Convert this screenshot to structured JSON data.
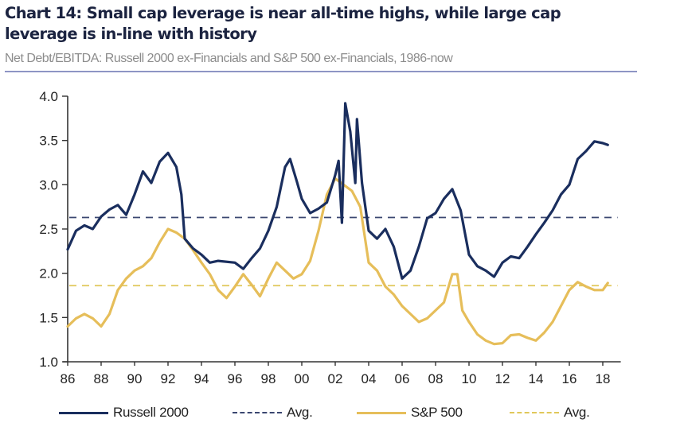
{
  "header": {
    "title": "Chart 14: Small cap leverage is near all-time highs, while large cap leverage is in-line with history",
    "subtitle": "Net Debt/EBITDA: Russell 2000 ex-Financials and S&P 500 ex-Financials, 1986-now"
  },
  "colors": {
    "russell": "#1a2e5e",
    "russell_avg": "#3a4670",
    "sp500": "#e6be5a",
    "sp500_avg": "#e0c85a",
    "axis": "#333333",
    "rule": "#8e95c4"
  },
  "chart_data": {
    "type": "line",
    "title": "Chart 14: Small cap leverage is near all-time highs, while large cap leverage is in-line with history",
    "subtitle": "Net Debt/EBITDA: Russell 2000 ex-Financials and S&P 500 ex-Financials, 1986-now",
    "xlabel": "",
    "ylabel": "",
    "xlim": [
      1986,
      2018.6
    ],
    "ylim": [
      1.0,
      4.0
    ],
    "x_ticks": [
      1986,
      1988,
      1990,
      1992,
      1994,
      1996,
      1998,
      2000,
      2002,
      2004,
      2006,
      2008,
      2010,
      2012,
      2014,
      2016,
      2018
    ],
    "x_tick_labels": [
      "86",
      "88",
      "90",
      "92",
      "94",
      "96",
      "98",
      "00",
      "02",
      "04",
      "06",
      "08",
      "10",
      "12",
      "14",
      "16",
      "18"
    ],
    "y_ticks": [
      1.0,
      1.5,
      2.0,
      2.5,
      3.0,
      3.5,
      4.0
    ],
    "y_tick_labels": [
      "1.0",
      "1.5",
      "2.0",
      "2.5",
      "3.0",
      "3.5",
      "4.0"
    ],
    "grid": false,
    "legend_position": "bottom",
    "series": [
      {
        "name": "Russell 2000",
        "style": "solid",
        "x": [
          1986.0,
          1986.5,
          1987.0,
          1987.5,
          1988.0,
          1988.5,
          1989.0,
          1989.5,
          1990.0,
          1990.5,
          1991.0,
          1991.5,
          1992.0,
          1992.5,
          1992.8,
          1993.0,
          1993.5,
          1994.0,
          1994.5,
          1995.0,
          1996.0,
          1996.5,
          1997.0,
          1997.5,
          1998.0,
          1998.5,
          1999.0,
          1999.3,
          1999.7,
          2000.0,
          2000.5,
          2001.0,
          2001.5,
          2002.0,
          2002.2,
          2002.4,
          2002.6,
          2002.9,
          2003.2,
          2003.3,
          2003.6,
          2004.0,
          2004.5,
          2005.0,
          2005.5,
          2006.0,
          2006.5,
          2007.0,
          2007.5,
          2008.0,
          2008.5,
          2009.0,
          2009.5,
          2010.0,
          2010.5,
          2011.0,
          2011.5,
          2012.0,
          2012.5,
          2013.0,
          2013.5,
          2014.0,
          2014.5,
          2015.0,
          2015.5,
          2016.0,
          2016.5,
          2017.0,
          2017.5,
          2018.0,
          2018.3
        ],
        "values": [
          2.27,
          2.48,
          2.54,
          2.5,
          2.64,
          2.72,
          2.77,
          2.66,
          2.89,
          3.15,
          3.02,
          3.26,
          3.36,
          3.2,
          2.89,
          2.39,
          2.28,
          2.21,
          2.12,
          2.14,
          2.12,
          2.05,
          2.17,
          2.28,
          2.48,
          2.75,
          3.2,
          3.29,
          3.04,
          2.84,
          2.68,
          2.73,
          2.8,
          3.11,
          3.27,
          2.57,
          3.92,
          3.6,
          3.02,
          3.74,
          3.02,
          2.48,
          2.39,
          2.5,
          2.3,
          1.94,
          2.03,
          2.3,
          2.62,
          2.68,
          2.84,
          2.95,
          2.71,
          2.21,
          2.08,
          2.03,
          1.96,
          2.12,
          2.19,
          2.17,
          2.3,
          2.44,
          2.57,
          2.71,
          2.89,
          3.0,
          3.29,
          3.38,
          3.49,
          3.47,
          3.45
        ]
      },
      {
        "name": "Avg.",
        "of": "Russell 2000",
        "style": "dashed",
        "value": 2.63
      },
      {
        "name": "S&P 500",
        "style": "solid",
        "x": [
          1986.0,
          1986.5,
          1987.0,
          1987.5,
          1988.0,
          1988.5,
          1989.0,
          1989.5,
          1990.0,
          1990.5,
          1991.0,
          1991.5,
          1992.0,
          1992.5,
          1993.0,
          1993.5,
          1994.0,
          1994.5,
          1995.0,
          1995.5,
          1996.0,
          1996.5,
          1997.0,
          1997.5,
          1998.0,
          1998.5,
          1999.0,
          1999.5,
          2000.0,
          2000.5,
          2001.0,
          2001.5,
          2002.0,
          2002.5,
          2003.0,
          2003.5,
          2004.0,
          2004.5,
          2005.0,
          2005.5,
          2006.0,
          2006.5,
          2007.0,
          2007.5,
          2008.0,
          2008.5,
          2009.0,
          2009.3,
          2009.6,
          2010.0,
          2010.5,
          2011.0,
          2011.5,
          2012.0,
          2012.5,
          2013.0,
          2013.5,
          2014.0,
          2014.5,
          2015.0,
          2015.5,
          2016.0,
          2016.5,
          2017.0,
          2017.5,
          2018.0,
          2018.3
        ],
        "values": [
          1.4,
          1.49,
          1.54,
          1.49,
          1.4,
          1.54,
          1.81,
          1.94,
          2.03,
          2.08,
          2.17,
          2.35,
          2.5,
          2.46,
          2.39,
          2.26,
          2.12,
          1.99,
          1.81,
          1.72,
          1.85,
          1.99,
          1.87,
          1.74,
          1.94,
          2.12,
          2.03,
          1.94,
          1.99,
          2.14,
          2.48,
          2.89,
          3.07,
          3.0,
          2.93,
          2.75,
          2.12,
          2.03,
          1.85,
          1.76,
          1.63,
          1.54,
          1.45,
          1.49,
          1.58,
          1.67,
          1.99,
          1.99,
          1.58,
          1.45,
          1.31,
          1.24,
          1.2,
          1.21,
          1.3,
          1.31,
          1.27,
          1.24,
          1.33,
          1.45,
          1.63,
          1.81,
          1.9,
          1.85,
          1.81,
          1.81,
          1.89
        ]
      },
      {
        "name": "Avg.",
        "of": "S&P 500",
        "style": "dashed",
        "value": 1.86
      }
    ]
  },
  "legend": [
    {
      "label": "Russell 2000",
      "style": "solid",
      "color_key": "russell"
    },
    {
      "label": "Avg.",
      "style": "dashed",
      "color_key": "russell_avg"
    },
    {
      "label": "S&P 500",
      "style": "solid",
      "color_key": "sp500"
    },
    {
      "label": "Avg.",
      "style": "dashed",
      "color_key": "sp500_avg"
    }
  ]
}
